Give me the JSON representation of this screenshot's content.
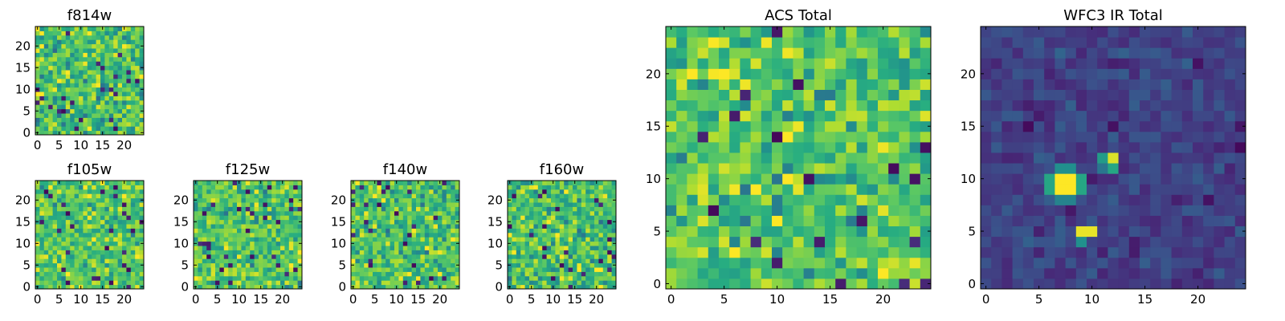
{
  "chart_data": [
    {
      "type": "heatmap",
      "title": "f814w",
      "grid_size": [
        25,
        25
      ],
      "xticks": [
        0,
        5,
        10,
        15,
        20
      ],
      "yticks": [
        0,
        5,
        10,
        15,
        20
      ],
      "xlim": [
        0,
        24
      ],
      "ylim": [
        0,
        24
      ],
      "colormap": "viridis",
      "value_range": [
        0,
        1
      ],
      "seed": 11,
      "mean": 0.72,
      "sd": 0.14,
      "blobs": []
    },
    {
      "type": "heatmap",
      "title": "f105w",
      "grid_size": [
        25,
        25
      ],
      "xticks": [
        0,
        5,
        10,
        15,
        20
      ],
      "yticks": [
        0,
        5,
        10,
        15,
        20
      ],
      "xlim": [
        0,
        24
      ],
      "ylim": [
        0,
        24
      ],
      "colormap": "viridis",
      "value_range": [
        0,
        1
      ],
      "seed": 23,
      "mean": 0.74,
      "sd": 0.12,
      "blobs": []
    },
    {
      "type": "heatmap",
      "title": "f125w",
      "grid_size": [
        25,
        25
      ],
      "xticks": [
        0,
        5,
        10,
        15,
        20
      ],
      "yticks": [
        0,
        5,
        10,
        15,
        20
      ],
      "xlim": [
        0,
        24
      ],
      "ylim": [
        0,
        24
      ],
      "colormap": "viridis",
      "value_range": [
        0,
        1
      ],
      "seed": 37,
      "mean": 0.73,
      "sd": 0.13,
      "blobs": []
    },
    {
      "type": "heatmap",
      "title": "f140w",
      "grid_size": [
        25,
        25
      ],
      "xticks": [
        0,
        5,
        10,
        15,
        20
      ],
      "yticks": [
        0,
        5,
        10,
        15,
        20
      ],
      "xlim": [
        0,
        24
      ],
      "ylim": [
        0,
        24
      ],
      "colormap": "viridis",
      "value_range": [
        0,
        1
      ],
      "seed": 41,
      "mean": 0.72,
      "sd": 0.14,
      "blobs": []
    },
    {
      "type": "heatmap",
      "title": "f160w",
      "grid_size": [
        25,
        25
      ],
      "xticks": [
        0,
        5,
        10,
        15,
        20
      ],
      "yticks": [
        0,
        5,
        10,
        15,
        20
      ],
      "xlim": [
        0,
        24
      ],
      "ylim": [
        0,
        24
      ],
      "colormap": "viridis",
      "value_range": [
        0,
        1
      ],
      "seed": 53,
      "mean": 0.71,
      "sd": 0.13,
      "blobs": []
    },
    {
      "type": "heatmap",
      "title": "ACS Total",
      "grid_size": [
        25,
        25
      ],
      "xticks": [
        0,
        5,
        10,
        15,
        20
      ],
      "yticks": [
        0,
        5,
        10,
        15,
        20
      ],
      "xlim": [
        0,
        24
      ],
      "ylim": [
        0,
        24
      ],
      "colormap": "viridis",
      "value_range": [
        0,
        1
      ],
      "seed": 67,
      "mean": 0.73,
      "sd": 0.13,
      "blobs": []
    },
    {
      "type": "heatmap",
      "title": "WFC3 IR Total",
      "grid_size": [
        25,
        25
      ],
      "xticks": [
        0,
        5,
        10,
        15,
        20
      ],
      "yticks": [
        0,
        5,
        10,
        15,
        20
      ],
      "xlim": [
        0,
        24
      ],
      "ylim": [
        0,
        24
      ],
      "colormap": "viridis",
      "value_range": [
        0,
        1
      ],
      "seed": 79,
      "mean": 0.2,
      "sd": 0.05,
      "blobs": [
        {
          "cols": [
            7,
            8
          ],
          "rows": [
            9,
            10
          ],
          "value": 1.0
        },
        {
          "cols": [
            6,
            6
          ],
          "rows": [
            9,
            10
          ],
          "value": 0.6
        },
        {
          "cols": [
            9,
            9
          ],
          "rows": [
            9,
            10
          ],
          "value": 0.6
        },
        {
          "cols": [
            7,
            8
          ],
          "rows": [
            11,
            11
          ],
          "value": 0.5
        },
        {
          "cols": [
            7,
            8
          ],
          "rows": [
            8,
            8
          ],
          "value": 0.45
        },
        {
          "cols": [
            9,
            10
          ],
          "rows": [
            5,
            5
          ],
          "value": 0.97
        },
        {
          "cols": [
            9,
            9
          ],
          "rows": [
            4,
            4
          ],
          "value": 0.5
        },
        {
          "cols": [
            12,
            12
          ],
          "rows": [
            12,
            12
          ],
          "value": 0.95
        },
        {
          "cols": [
            11,
            11
          ],
          "rows": [
            12,
            12
          ],
          "value": 0.55
        },
        {
          "cols": [
            12,
            12
          ],
          "rows": [
            11,
            11
          ],
          "value": 0.6
        },
        {
          "cols": [
            11,
            11
          ],
          "rows": [
            11,
            11
          ],
          "value": 0.4
        }
      ]
    }
  ]
}
